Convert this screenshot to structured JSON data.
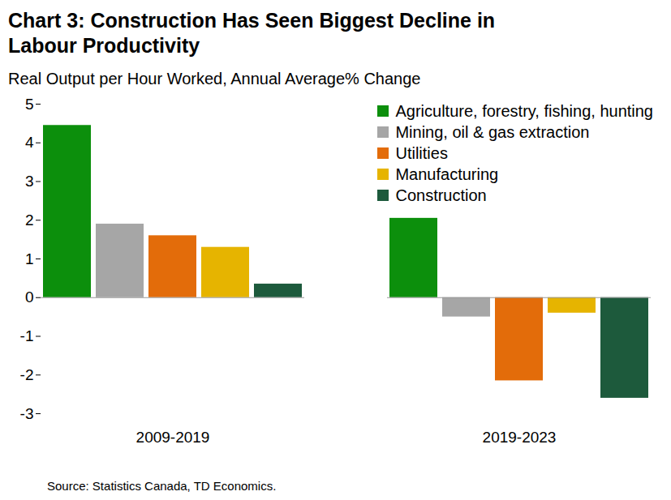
{
  "chart_data": {
    "type": "bar",
    "title": "Chart 3: Construction Has Seen Biggest Decline in Labour Productivity",
    "subtitle": "Real Output per Hour Worked, Annual Average% Change",
    "caption": "Source: Statistics Canada, TD Economics.",
    "categories": [
      "2009-2019",
      "2019-2023"
    ],
    "series": [
      {
        "name": "Agriculture, forestry, fishing, hunting",
        "color": "#0c8f0c",
        "values": [
          4.45,
          2.05
        ]
      },
      {
        "name": "Mining, oil & gas extraction",
        "color": "#a6a6a6",
        "values": [
          1.9,
          -0.5
        ]
      },
      {
        "name": "Utilities",
        "color": "#e36c0a",
        "values": [
          1.6,
          -2.15
        ]
      },
      {
        "name": "Manufacturing",
        "color": "#e6b400",
        "values": [
          1.3,
          -0.4
        ]
      },
      {
        "name": "Construction",
        "color": "#1d5a3c",
        "values": [
          0.35,
          -2.6
        ]
      }
    ],
    "ylim": [
      -3,
      5
    ],
    "yticks": [
      -3,
      -2,
      -1,
      0,
      1,
      2,
      3,
      4,
      5
    ],
    "grid": false,
    "legend": "top-right"
  }
}
